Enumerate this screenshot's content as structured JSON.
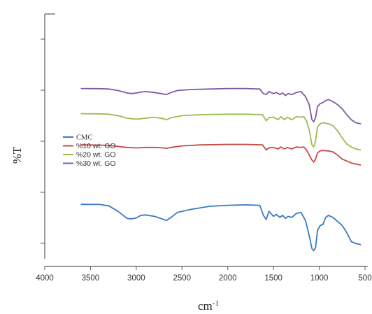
{
  "chart_data": {
    "type": "line",
    "title": "",
    "xlabel": "cm",
    "xlabel_superscript": "-1",
    "ylabel": "%T",
    "x_ticks": [
      4000,
      3500,
      3000,
      2500,
      2000,
      1500,
      1000,
      500
    ],
    "xlim": [
      4000,
      500
    ],
    "x_reversed": true,
    "grid": false,
    "legend_position": "left-middle",
    "series": [
      {
        "name": "CMC",
        "color": "#3a78c2",
        "x": [
          3600,
          3400,
          3300,
          3200,
          3100,
          3050,
          3000,
          2950,
          2900,
          2800,
          2700,
          2670,
          2620,
          2550,
          2400,
          2200,
          2000,
          1800,
          1650,
          1610,
          1580,
          1550,
          1500,
          1470,
          1430,
          1400,
          1370,
          1340,
          1300,
          1250,
          1200,
          1150,
          1110,
          1080,
          1060,
          1040,
          1020,
          990,
          960,
          930,
          900,
          850,
          800,
          750,
          700,
          650,
          600,
          550
        ],
        "y": [
          61,
          60.8,
          59.5,
          54,
          47,
          46.5,
          47.5,
          50,
          50.5,
          49,
          46,
          45,
          48,
          53,
          56,
          59,
          60,
          60.5,
          60,
          50,
          46,
          54,
          49,
          51,
          48,
          50,
          47,
          49,
          48,
          52,
          53,
          45,
          30,
          17,
          15,
          18,
          35,
          40,
          41,
          48,
          50,
          48,
          44,
          40,
          33,
          24,
          22,
          21
        ]
      },
      {
        "name": "%10 wt. GO",
        "color": "#c74a45",
        "x": [
          3600,
          3400,
          3300,
          3200,
          3100,
          3000,
          2900,
          2800,
          2700,
          2670,
          2620,
          2500,
          2300,
          2000,
          1800,
          1620,
          1580,
          1550,
          1500,
          1450,
          1420,
          1380,
          1350,
          1300,
          1250,
          1200,
          1170,
          1140,
          1110,
          1080,
          1060,
          1040,
          1020,
          990,
          960,
          900,
          850,
          800,
          750,
          700,
          650,
          600,
          550
        ],
        "y": [
          120,
          119.8,
          119.5,
          118.5,
          117.5,
          117,
          117.5,
          117.5,
          117,
          116.5,
          117.5,
          119,
          120,
          120.5,
          120.5,
          120,
          115,
          117,
          117.5,
          116,
          118,
          116,
          117.5,
          116,
          118,
          117.5,
          118,
          115,
          110,
          105,
          103,
          106,
          112,
          114,
          114.5,
          114,
          113,
          110,
          106,
          104,
          102,
          101,
          100
        ]
      },
      {
        "name": "%20 wt. GO",
        "color": "#9bbb52",
        "x": [
          3600,
          3400,
          3300,
          3200,
          3100,
          3000,
          2900,
          2800,
          2700,
          2670,
          2620,
          2500,
          2300,
          2000,
          1800,
          1620,
          1580,
          1550,
          1500,
          1450,
          1420,
          1380,
          1350,
          1300,
          1250,
          1200,
          1170,
          1140,
          1110,
          1080,
          1060,
          1040,
          1020,
          990,
          960,
          900,
          850,
          800,
          750,
          700,
          650,
          600,
          550
        ],
        "y": [
          151,
          150.8,
          150.5,
          149,
          146.5,
          145.5,
          146.5,
          147.5,
          146,
          145,
          147,
          149,
          150,
          150.5,
          150.5,
          150,
          144,
          147,
          147.5,
          145,
          148,
          145,
          147.5,
          145,
          148,
          147.5,
          148,
          144,
          135,
          120,
          118,
          124,
          138,
          141,
          142,
          141,
          139,
          134,
          127,
          121,
          118,
          116,
          115
        ]
      },
      {
        "name": "%30 wt. GO",
        "color": "#7d5aa3",
        "x": [
          3600,
          3400,
          3300,
          3200,
          3100,
          3050,
          3000,
          2950,
          2900,
          2800,
          2700,
          2670,
          2620,
          2550,
          2400,
          2200,
          2000,
          1800,
          1650,
          1610,
          1580,
          1550,
          1500,
          1470,
          1430,
          1400,
          1370,
          1340,
          1300,
          1250,
          1200,
          1150,
          1110,
          1080,
          1060,
          1040,
          1020,
          990,
          960,
          930,
          900,
          850,
          800,
          750,
          700,
          650,
          600,
          550
        ],
        "y": [
          176,
          175.8,
          175.5,
          174,
          171.5,
          171,
          171.5,
          172.5,
          173,
          172,
          170.5,
          170,
          172,
          174,
          175,
          175.5,
          176,
          176,
          175.5,
          171,
          170,
          173,
          171,
          172,
          170,
          171.5,
          169,
          171,
          170,
          172,
          173,
          168,
          160,
          145,
          143,
          147,
          158,
          161,
          162,
          164,
          165,
          163,
          160,
          156,
          150,
          145,
          142,
          141
        ]
      }
    ]
  }
}
